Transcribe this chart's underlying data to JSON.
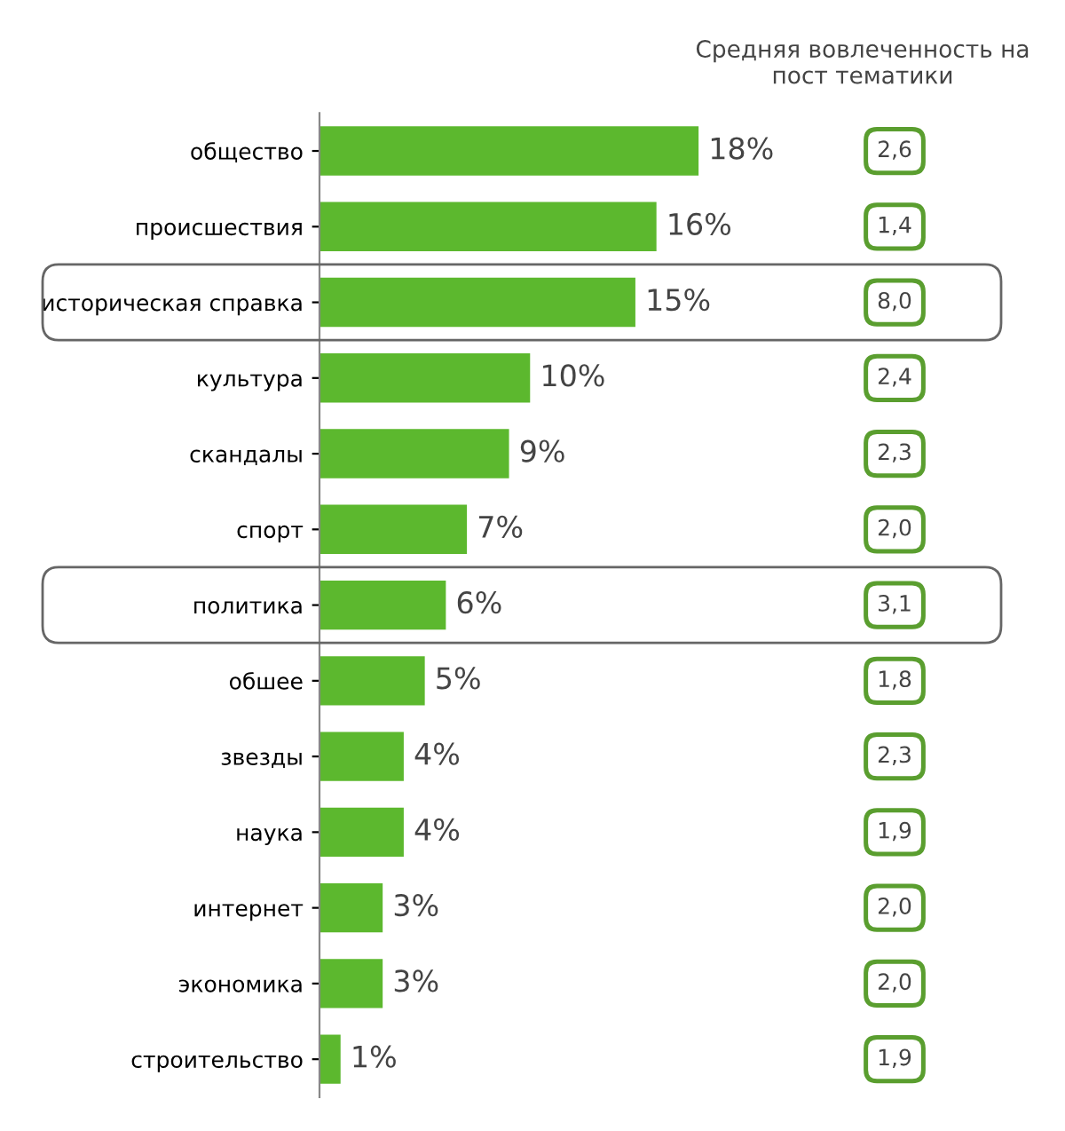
{
  "chart_data": {
    "type": "bar",
    "orientation": "horizontal",
    "categories": [
      "общество",
      "происшествия",
      "историческая справка",
      "культура",
      "скандалы",
      "спорт",
      "политика",
      "обшее",
      "звезды",
      "наука",
      "интернет",
      "экономика",
      "строительство"
    ],
    "values": [
      18,
      16,
      15,
      10,
      9,
      7,
      6,
      5,
      4,
      4,
      3,
      3,
      1
    ],
    "value_labels": [
      "18%",
      "16%",
      "15%",
      "10%",
      "9%",
      "7%",
      "6%",
      "5%",
      "4%",
      "4%",
      "3%",
      "3%",
      "1%"
    ],
    "color": "#5cb82e",
    "grid": false,
    "legend": false,
    "annotations": [
      "Средняя вовлеченность на\nпост тематики",
      "2,6",
      "1,4",
      "8,0",
      "2,4",
      "2,3",
      "2,0",
      "3,1",
      "1,8",
      "2,3",
      "1,9",
      "2,0",
      "2,0",
      "1,9"
    ]
  }
}
